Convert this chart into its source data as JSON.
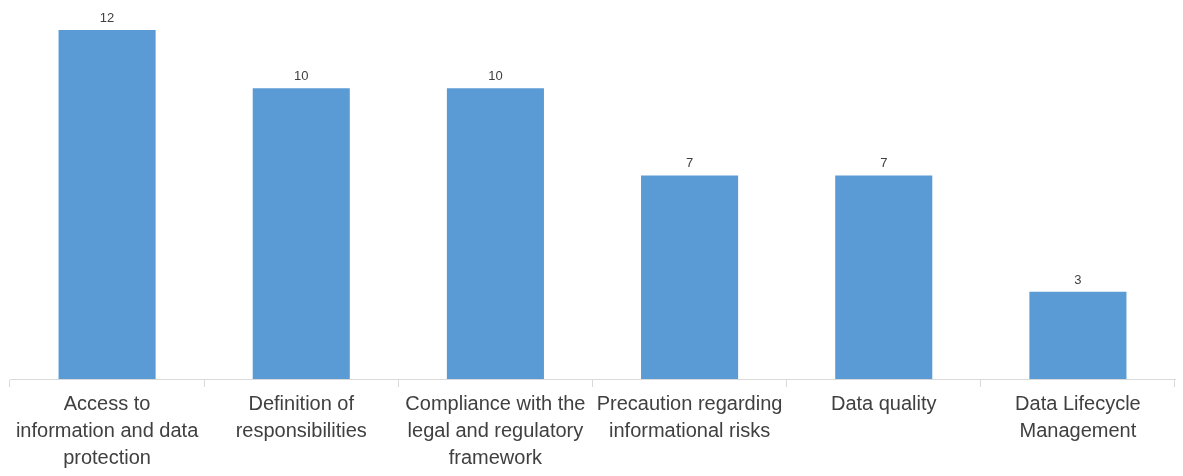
{
  "chart_data": {
    "type": "bar",
    "categories": [
      "Access to information and data protection",
      "Definition of responsibilities",
      "Compliance with the legal and regulatory framework",
      "Precaution regarding informational risks",
      "Data quality",
      "Data Lifecycle Management"
    ],
    "values": [
      12,
      10,
      10,
      7,
      7,
      3
    ],
    "color": "#5b9bd5",
    "data_labels": true,
    "legend": false
  }
}
